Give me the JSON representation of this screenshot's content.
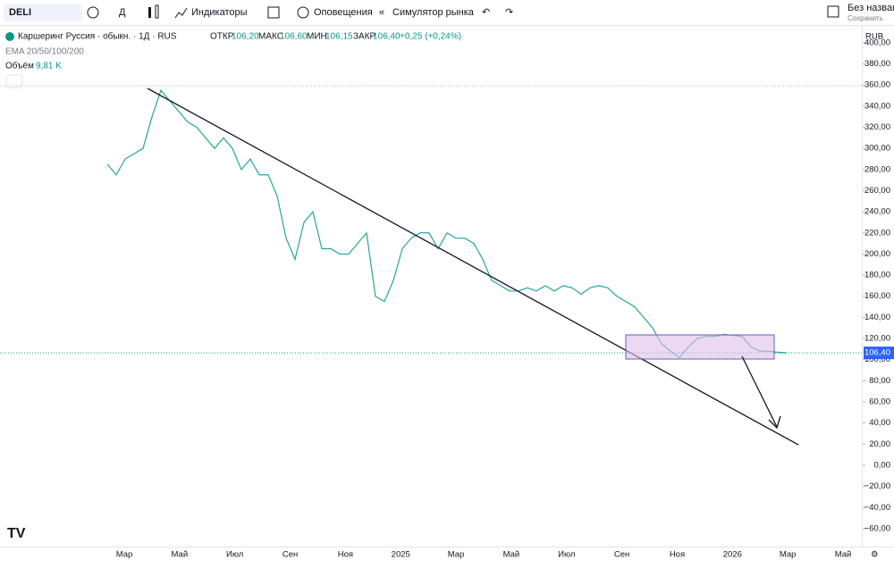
{
  "toolbar": {
    "symbol": "DELI",
    "interval": "Д",
    "indicators": "Индикаторы",
    "alerts": "Оповещения",
    "replay": "Симулятор рынка",
    "layout_name": "Без названия",
    "save": "Сохранить"
  },
  "legend": {
    "title": "Каршеринг Руссия · обыкн. · 1Д · RUS",
    "open_label": "ОТКР",
    "open": "106,20",
    "high_label": "МАКС",
    "high": "106,60",
    "low_label": "МИН",
    "low": "106,15",
    "close_label": "ЗАКР",
    "close": "106,40",
    "change": "+0,25 (+0,24%)",
    "ema": "EMA 20/50/100/200",
    "volume_label": "Объём",
    "volume": "9,81 K"
  },
  "currency": "RUB",
  "last_price_label": "106,40",
  "chart_data": {
    "type": "line",
    "series": [
      {
        "name": "DELI",
        "color": "#26a69a",
        "values": [
          285,
          275,
          290,
          295,
          300,
          330,
          355,
          345,
          335,
          325,
          320,
          310,
          300,
          310,
          300,
          280,
          290,
          275,
          275,
          255,
          215,
          195,
          230,
          240,
          205,
          205,
          200,
          200,
          210,
          220,
          160,
          155,
          175,
          205,
          215,
          220,
          220,
          205,
          220,
          215,
          215,
          210,
          195,
          175,
          170,
          165,
          165,
          168,
          165,
          170,
          165,
          170,
          168,
          162,
          168,
          170,
          168,
          160,
          155,
          150,
          140,
          130,
          115,
          108,
          102,
          112,
          120,
          122,
          122,
          124,
          123,
          122,
          112,
          108,
          108,
          107,
          106.4
        ]
      }
    ],
    "x_axis_labels": [
      "Мар",
      "Май",
      "Июл",
      "Сен",
      "Ноя",
      "2025",
      "Мар",
      "Май",
      "Июл",
      "Сен",
      "Ноя",
      "2026",
      "Мар",
      "Май"
    ],
    "ylim": [
      -77,
      416
    ],
    "yticks": [
      {
        "value": 400,
        "label": "400,00"
      },
      {
        "value": 380,
        "label": "380,00"
      },
      {
        "value": 360,
        "label": "360,00"
      },
      {
        "value": 340,
        "label": "340,00"
      },
      {
        "value": 320,
        "label": "320,00"
      },
      {
        "value": 300,
        "label": "300,00"
      },
      {
        "value": 280,
        "label": "280,00"
      },
      {
        "value": 260,
        "label": "260,00"
      },
      {
        "value": 240,
        "label": "240,00"
      },
      {
        "value": 220,
        "label": "220,00"
      },
      {
        "value": 200,
        "label": "200,00"
      },
      {
        "value": 180,
        "label": "180,00"
      },
      {
        "value": 160,
        "label": "160,00"
      },
      {
        "value": 140,
        "label": "140,00"
      },
      {
        "value": 120,
        "label": "120,00"
      },
      {
        "value": 100,
        "label": "100,00"
      },
      {
        "value": 80,
        "label": "80,00"
      },
      {
        "value": 60,
        "label": "60,00"
      },
      {
        "value": 40,
        "label": "40,00"
      },
      {
        "value": 20,
        "label": "20,00"
      },
      {
        "value": 0,
        "label": "0,00"
      },
      {
        "value": -20,
        "label": "−20,00"
      },
      {
        "value": -40,
        "label": "−40,00"
      },
      {
        "value": -60,
        "label": "−60,00"
      }
    ]
  }
}
